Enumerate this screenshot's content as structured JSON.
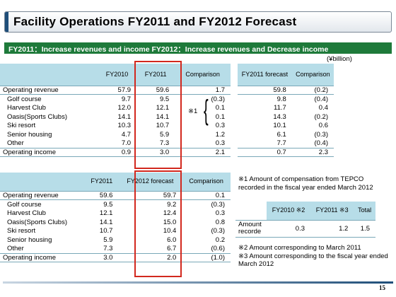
{
  "title": "Facility Operations FY2011 and FY2012 Forecast",
  "banner": "FY2011：Increase revenues and income  FY2012：Increase revenues and Decrease income",
  "unit": "(¥billion)",
  "table1": {
    "headers": [
      "",
      "FY2010",
      "FY2011",
      "Comparison"
    ],
    "rows": [
      [
        "Operating revenue",
        "57.9",
        "59.6",
        "1.7"
      ],
      [
        "Golf course",
        "9.7",
        "9.5",
        "(0.3)"
      ],
      [
        "Harvest Club",
        "12.0",
        "12.1",
        "0.1"
      ],
      [
        "Oasis(Sports Clubs)",
        "14.1",
        "14.1",
        "0.1"
      ],
      [
        "Ski resort",
        "10.3",
        "10.7",
        "0.3"
      ],
      [
        "Senior housing",
        "4.7",
        "5.9",
        "1.2"
      ],
      [
        "Other",
        "7.0",
        "7.3",
        "0.3"
      ],
      [
        "Operating income",
        "0.9",
        "3.0",
        "2.1"
      ]
    ],
    "mark": "※1"
  },
  "table2": {
    "headers": [
      "FY2011 forecast",
      "Comparison"
    ],
    "rows": [
      [
        "59.8",
        "(0.2)"
      ],
      [
        "9.8",
        "(0.4)"
      ],
      [
        "11.7",
        "0.4"
      ],
      [
        "14.3",
        "(0.2)"
      ],
      [
        "10.1",
        "0.6"
      ],
      [
        "6.1",
        "(0.3)"
      ],
      [
        "7.7",
        "(0.4)"
      ],
      [
        "0.7",
        "2.3"
      ]
    ]
  },
  "table3": {
    "headers": [
      "",
      "FY2011",
      "FY2012 forecast",
      "Comparison"
    ],
    "rows": [
      [
        "Operating revenue",
        "59.6",
        "59.7",
        "0.1"
      ],
      [
        "Golf course",
        "9.5",
        "9.2",
        "(0.3)"
      ],
      [
        "Harvest Club",
        "12.1",
        "12.4",
        "0.3"
      ],
      [
        "Oasis(Sports Clubs)",
        "14.1",
        "15.0",
        "0.8"
      ],
      [
        "Ski resort",
        "10.7",
        "10.4",
        "(0.3)"
      ],
      [
        "Senior housing",
        "5.9",
        "6.0",
        "0.2"
      ],
      [
        "Other",
        "7.3",
        "6.7",
        "(0.6)"
      ],
      [
        "Operating income",
        "3.0",
        "2.0",
        "(1.0)"
      ]
    ]
  },
  "note1": "※1 Amount of compensation from TEPCO recorded in the fiscal year ended March 2012",
  "table4": {
    "headers": [
      "",
      "FY2010 ※2",
      "FY2011 ※3",
      "Total"
    ],
    "row": [
      "Amount recorde",
      "0.3",
      "1.2",
      "1.5"
    ]
  },
  "note2": "※2 Amount corresponding to March 2011",
  "note3": "※3 Amount corresponding to the fiscal year ended March 2012",
  "page": "15"
}
